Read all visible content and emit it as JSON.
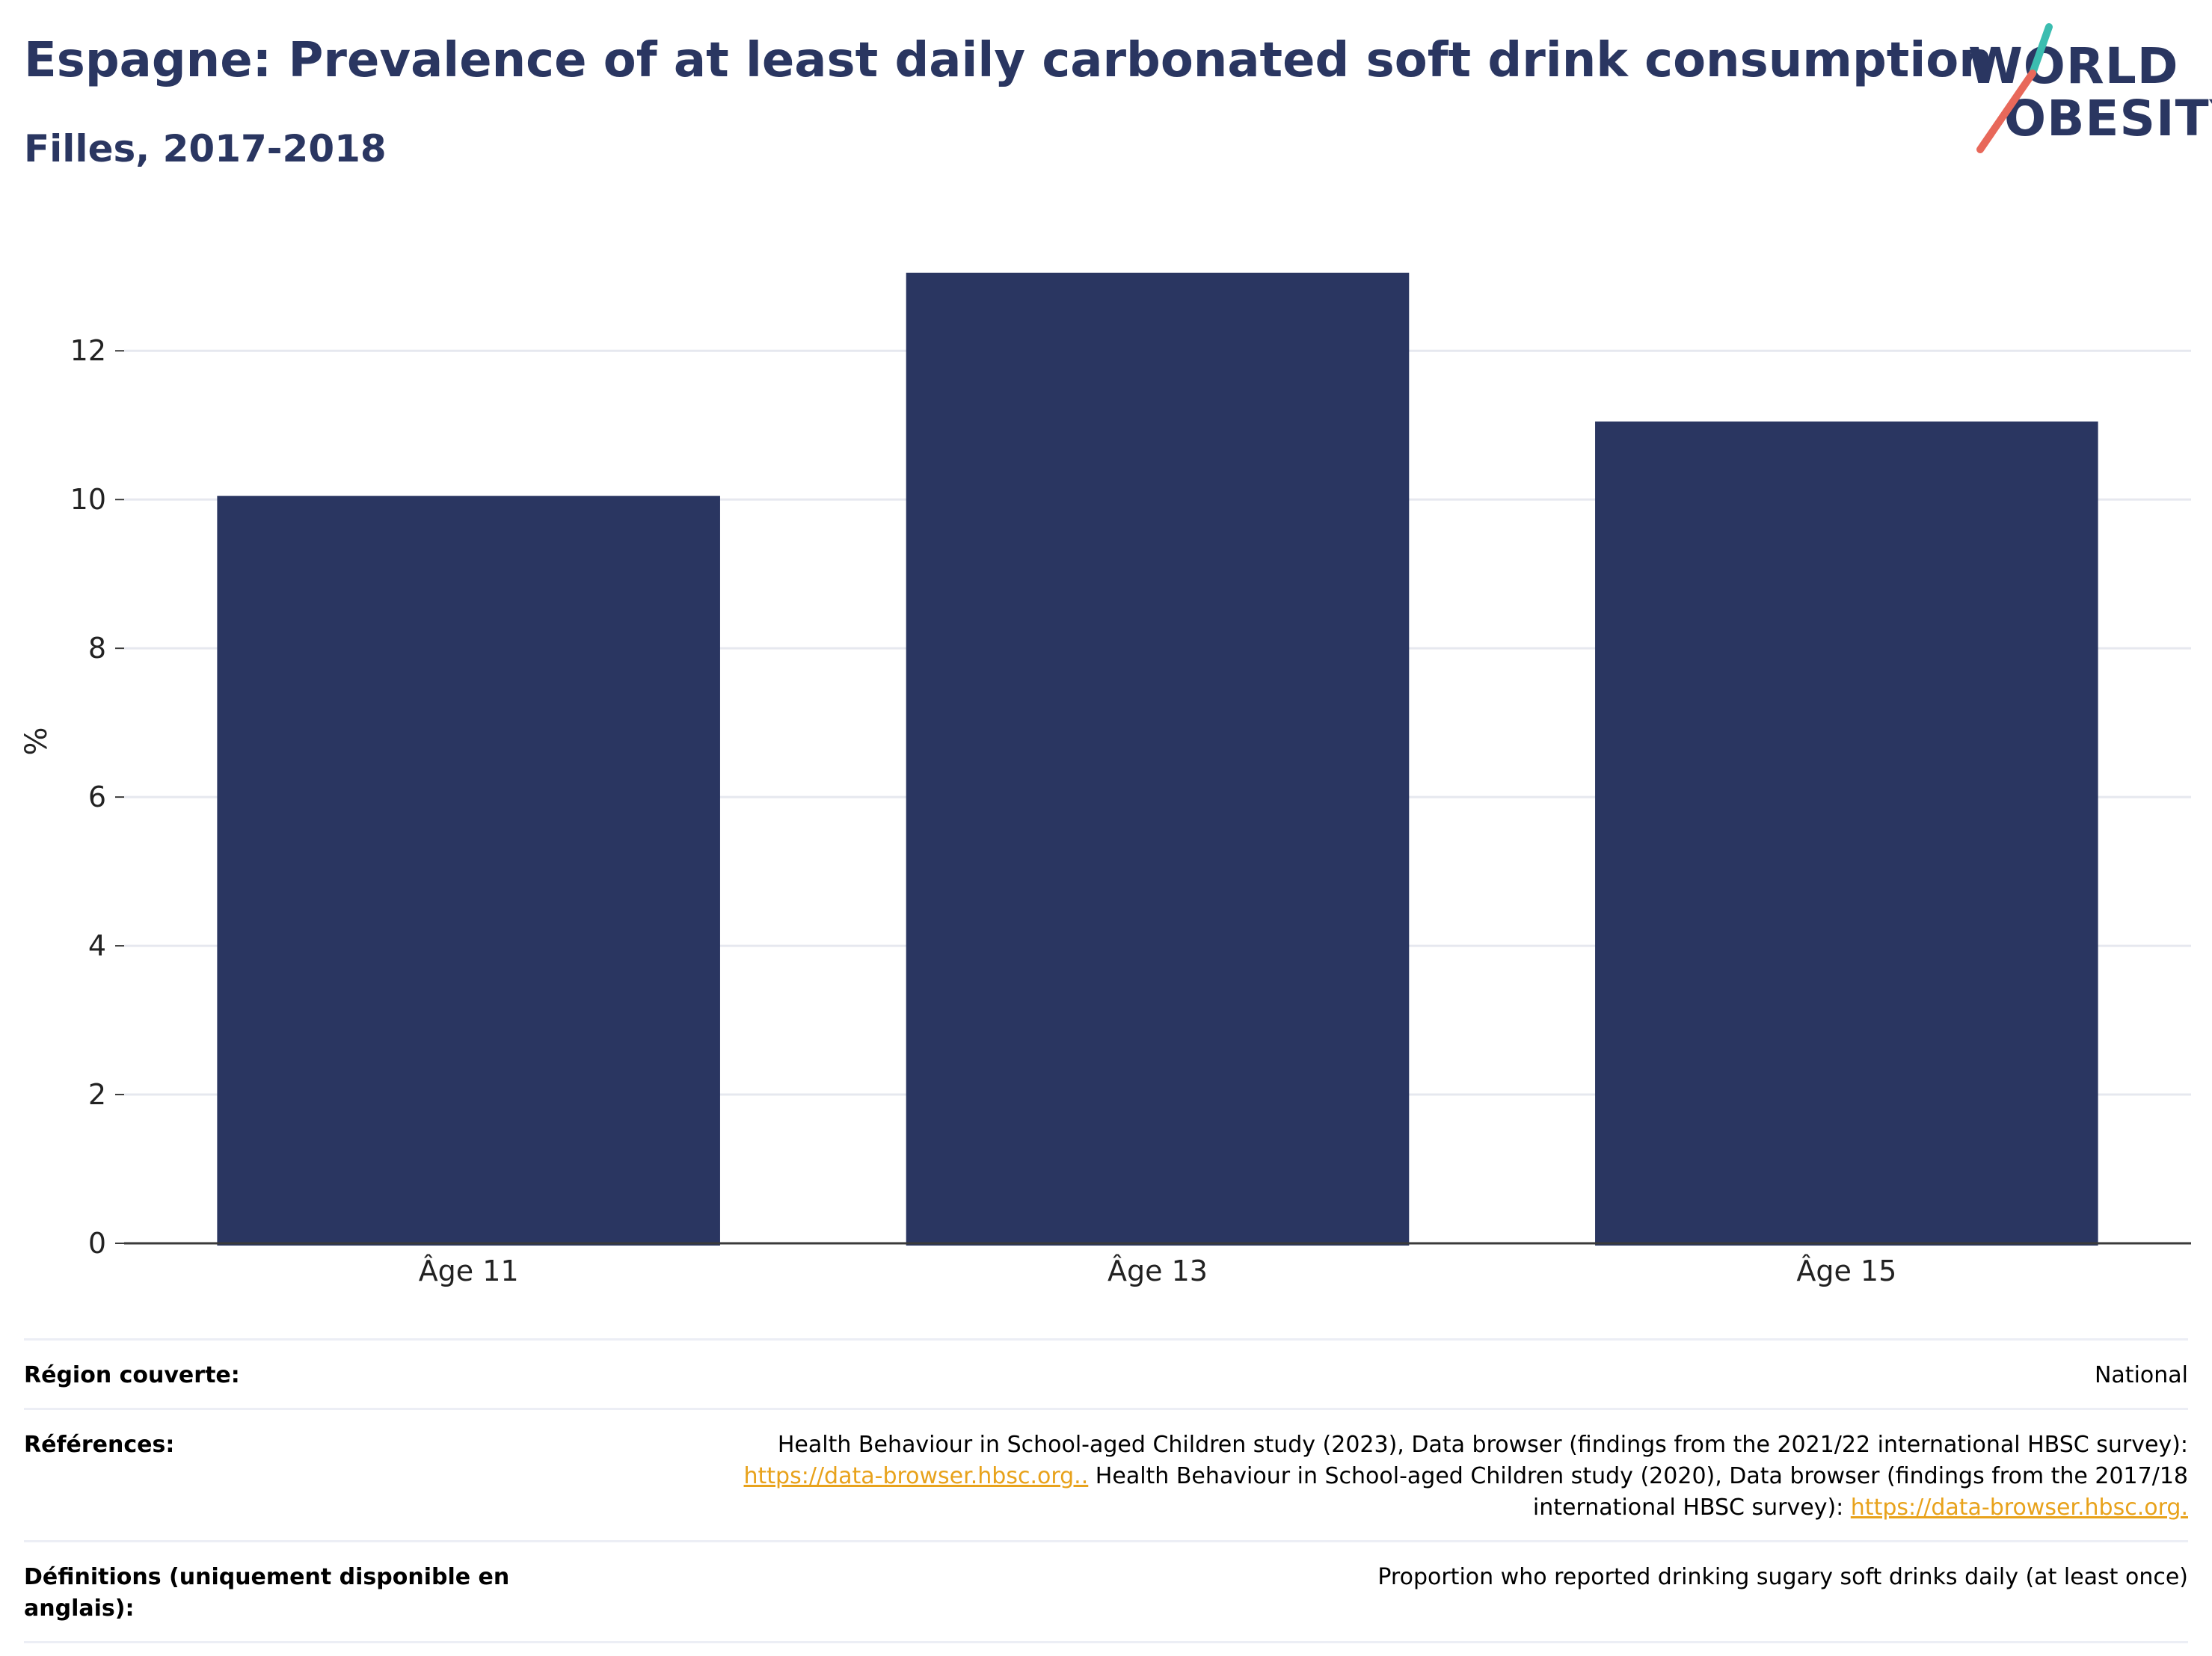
{
  "header": {
    "title": "Espagne: Prevalence of at least daily carbonated soft drink consumption",
    "subtitle": "Filles, 2017-2018"
  },
  "logo": {
    "line1": "WORLD",
    "line2": "OBESITY",
    "colors": {
      "text": "#2a3661",
      "slash_top": "#3bbdb0",
      "slash_bottom": "#e8685a"
    }
  },
  "colors": {
    "bar": "#2a3661",
    "grid": "#e6e8ef",
    "axis": "#3a3a3a",
    "link": "#e8a21b"
  },
  "chart_data": {
    "type": "bar",
    "categories": [
      "Âge 11",
      "Âge 13",
      "Âge 15"
    ],
    "values": [
      10.05,
      13.05,
      11.05
    ],
    "title": "",
    "xlabel": "",
    "ylabel": "%",
    "ylim": [
      0,
      13.5
    ],
    "yticks": [
      0,
      2,
      4,
      6,
      8,
      10,
      12
    ],
    "grid": true,
    "legend": "none"
  },
  "meta": {
    "region": {
      "label": "Région couverte:",
      "value": "National"
    },
    "references": {
      "label": "Références:",
      "line1": "Health Behaviour in School-aged Children study (2023), Data browser (findings from the 2021/22 international HBSC survey):",
      "link1": "https://data-browser.hbsc.org..",
      "line2": " Health Behaviour in School-aged Children study (2020), Data browser (findings from the 2017/18",
      "line3": "international HBSC survey): ",
      "link2": "https://data-browser.hbsc.org."
    },
    "definitions": {
      "label": "Définitions (uniquement disponible en anglais):",
      "value": "Proportion who reported drinking sugary soft drinks daily (at least once)"
    }
  }
}
